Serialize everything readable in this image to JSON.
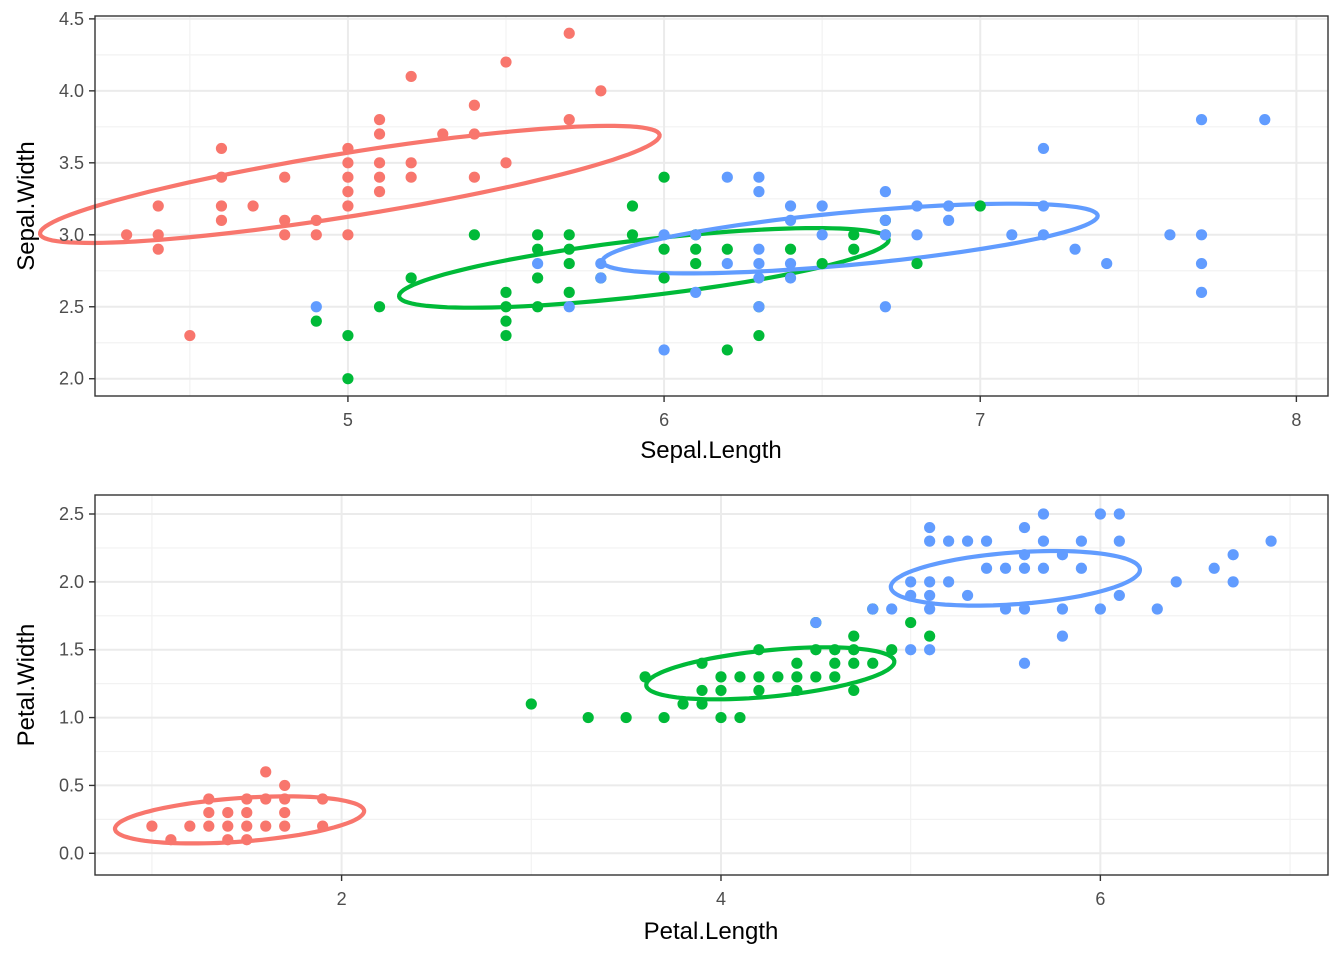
{
  "chart_data": [
    {
      "type": "scatter",
      "xlabel": "Sepal.Length",
      "ylabel": "Sepal.Width",
      "xlim": [
        4.2,
        8.1
      ],
      "ylim": [
        1.88,
        4.52
      ],
      "xticks": [
        5,
        6,
        7,
        8
      ],
      "yticks": [
        2.0,
        2.5,
        3.0,
        3.5,
        4.0,
        4.5
      ],
      "ytick_labels": [
        "2.0",
        "2.5",
        "3.0",
        "3.5",
        "4.0",
        "4.5"
      ],
      "grid": true,
      "legend": "none",
      "series": [
        {
          "color": "#F8766D",
          "points": [
            [
              4.3,
              3.0
            ],
            [
              4.4,
              2.9
            ],
            [
              4.4,
              3.0
            ],
            [
              4.4,
              3.2
            ],
            [
              4.5,
              2.3
            ],
            [
              4.6,
              3.1
            ],
            [
              4.6,
              3.2
            ],
            [
              4.6,
              3.4
            ],
            [
              4.6,
              3.6
            ],
            [
              4.7,
              3.2
            ],
            [
              4.8,
              3.0
            ],
            [
              4.8,
              3.1
            ],
            [
              4.8,
              3.4
            ],
            [
              4.9,
              3.0
            ],
            [
              4.9,
              3.1
            ],
            [
              5.0,
              3.0
            ],
            [
              5.0,
              3.2
            ],
            [
              5.0,
              3.3
            ],
            [
              5.0,
              3.4
            ],
            [
              5.0,
              3.5
            ],
            [
              5.0,
              3.6
            ],
            [
              5.1,
              3.3
            ],
            [
              5.1,
              3.4
            ],
            [
              5.1,
              3.5
            ],
            [
              5.1,
              3.7
            ],
            [
              5.1,
              3.8
            ],
            [
              5.2,
              3.4
            ],
            [
              5.2,
              3.5
            ],
            [
              5.2,
              4.1
            ],
            [
              5.3,
              3.7
            ],
            [
              5.4,
              3.4
            ],
            [
              5.4,
              3.7
            ],
            [
              5.4,
              3.9
            ],
            [
              5.5,
              3.5
            ],
            [
              5.5,
              4.2
            ],
            [
              5.7,
              3.8
            ],
            [
              5.7,
              4.4
            ],
            [
              5.8,
              4.0
            ]
          ],
          "ellipse": {
            "cx": 5.006,
            "cy": 3.35,
            "rx": 1.04,
            "ry": 0.21,
            "angle_deg": 20
          }
        },
        {
          "color": "#00BA38",
          "points": [
            [
              4.9,
              2.4
            ],
            [
              5.0,
              2.0
            ],
            [
              5.0,
              2.3
            ],
            [
              5.1,
              2.5
            ],
            [
              5.2,
              2.7
            ],
            [
              5.4,
              3.0
            ],
            [
              5.5,
              2.3
            ],
            [
              5.5,
              2.4
            ],
            [
              5.5,
              2.5
            ],
            [
              5.5,
              2.6
            ],
            [
              5.6,
              2.5
            ],
            [
              5.6,
              2.7
            ],
            [
              5.6,
              2.9
            ],
            [
              5.6,
              3.0
            ],
            [
              5.7,
              2.6
            ],
            [
              5.7,
              2.8
            ],
            [
              5.7,
              2.9
            ],
            [
              5.7,
              3.0
            ],
            [
              5.8,
              2.7
            ],
            [
              5.9,
              3.0
            ],
            [
              5.9,
              3.2
            ],
            [
              6.0,
              2.7
            ],
            [
              6.0,
              2.9
            ],
            [
              6.0,
              3.4
            ],
            [
              6.1,
              2.8
            ],
            [
              6.1,
              2.9
            ],
            [
              6.1,
              3.0
            ],
            [
              6.2,
              2.2
            ],
            [
              6.2,
              2.9
            ],
            [
              6.3,
              2.3
            ],
            [
              6.3,
              2.5
            ],
            [
              6.4,
              2.9
            ],
            [
              6.5,
              2.8
            ],
            [
              6.6,
              2.9
            ],
            [
              6.6,
              3.0
            ],
            [
              6.7,
              3.0
            ],
            [
              6.7,
              3.1
            ],
            [
              6.8,
              2.8
            ],
            [
              7.0,
              3.2
            ]
          ],
          "ellipse": {
            "cx": 5.936,
            "cy": 2.77,
            "rx": 0.8,
            "ry": 0.19,
            "angle_deg": 15
          }
        },
        {
          "color": "#619CFF",
          "points": [
            [
              4.9,
              2.5
            ],
            [
              5.6,
              2.8
            ],
            [
              5.7,
              2.5
            ],
            [
              5.8,
              2.7
            ],
            [
              5.8,
              2.8
            ],
            [
              6.0,
              2.2
            ],
            [
              6.0,
              3.0
            ],
            [
              6.1,
              2.6
            ],
            [
              6.1,
              3.0
            ],
            [
              6.2,
              2.8
            ],
            [
              6.2,
              3.4
            ],
            [
              6.3,
              2.5
            ],
            [
              6.3,
              2.7
            ],
            [
              6.3,
              2.8
            ],
            [
              6.3,
              2.9
            ],
            [
              6.3,
              3.3
            ],
            [
              6.3,
              3.4
            ],
            [
              6.4,
              2.7
            ],
            [
              6.4,
              2.8
            ],
            [
              6.4,
              3.1
            ],
            [
              6.4,
              3.2
            ],
            [
              6.5,
              3.0
            ],
            [
              6.5,
              3.2
            ],
            [
              6.7,
              2.5
            ],
            [
              6.7,
              3.0
            ],
            [
              6.7,
              3.1
            ],
            [
              6.7,
              3.3
            ],
            [
              6.8,
              3.0
            ],
            [
              6.8,
              3.2
            ],
            [
              6.9,
              3.1
            ],
            [
              6.9,
              3.2
            ],
            [
              7.1,
              3.0
            ],
            [
              7.2,
              3.0
            ],
            [
              7.2,
              3.2
            ],
            [
              7.2,
              3.6
            ],
            [
              7.3,
              2.9
            ],
            [
              7.4,
              2.8
            ],
            [
              7.6,
              3.0
            ],
            [
              7.7,
              2.6
            ],
            [
              7.7,
              2.8
            ],
            [
              7.7,
              3.0
            ],
            [
              7.7,
              3.8
            ],
            [
              7.9,
              3.8
            ]
          ],
          "ellipse": {
            "cx": 6.588,
            "cy": 2.974,
            "rx": 0.8,
            "ry": 0.18,
            "angle_deg": 12
          }
        }
      ]
    },
    {
      "type": "scatter",
      "xlabel": "Petal.Length",
      "ylabel": "Petal.Width",
      "xlim": [
        0.7,
        7.2
      ],
      "ylim": [
        -0.16,
        2.64
      ],
      "xticks": [
        2,
        4,
        6
      ],
      "yticks": [
        0.0,
        0.5,
        1.0,
        1.5,
        2.0,
        2.5
      ],
      "ytick_labels": [
        "0.0",
        "0.5",
        "1.0",
        "1.5",
        "2.0",
        "2.5"
      ],
      "grid": true,
      "legend": "none",
      "series": [
        {
          "color": "#F8766D",
          "points": [
            [
              1.0,
              0.2
            ],
            [
              1.1,
              0.1
            ],
            [
              1.2,
              0.2
            ],
            [
              1.3,
              0.2
            ],
            [
              1.3,
              0.3
            ],
            [
              1.3,
              0.4
            ],
            [
              1.4,
              0.1
            ],
            [
              1.4,
              0.2
            ],
            [
              1.4,
              0.3
            ],
            [
              1.5,
              0.1
            ],
            [
              1.5,
              0.2
            ],
            [
              1.5,
              0.3
            ],
            [
              1.5,
              0.4
            ],
            [
              1.6,
              0.2
            ],
            [
              1.6,
              0.4
            ],
            [
              1.6,
              0.6
            ],
            [
              1.7,
              0.2
            ],
            [
              1.7,
              0.3
            ],
            [
              1.7,
              0.4
            ],
            [
              1.7,
              0.5
            ],
            [
              1.9,
              0.2
            ],
            [
              1.9,
              0.4
            ]
          ],
          "ellipse": {
            "cx": 1.462,
            "cy": 0.246,
            "rx": 0.66,
            "ry": 0.16,
            "angle_deg": 6
          }
        },
        {
          "color": "#00BA38",
          "points": [
            [
              3.0,
              1.1
            ],
            [
              3.3,
              1.0
            ],
            [
              3.5,
              1.0
            ],
            [
              3.6,
              1.3
            ],
            [
              3.7,
              1.0
            ],
            [
              3.8,
              1.1
            ],
            [
              3.9,
              1.1
            ],
            [
              3.9,
              1.2
            ],
            [
              3.9,
              1.4
            ],
            [
              4.0,
              1.0
            ],
            [
              4.0,
              1.2
            ],
            [
              4.0,
              1.3
            ],
            [
              4.1,
              1.0
            ],
            [
              4.1,
              1.3
            ],
            [
              4.2,
              1.2
            ],
            [
              4.2,
              1.3
            ],
            [
              4.2,
              1.5
            ],
            [
              4.3,
              1.3
            ],
            [
              4.4,
              1.2
            ],
            [
              4.4,
              1.3
            ],
            [
              4.4,
              1.4
            ],
            [
              4.5,
              1.3
            ],
            [
              4.5,
              1.5
            ],
            [
              4.5,
              1.7
            ],
            [
              4.6,
              1.3
            ],
            [
              4.6,
              1.4
            ],
            [
              4.6,
              1.5
            ],
            [
              4.7,
              1.2
            ],
            [
              4.7,
              1.4
            ],
            [
              4.7,
              1.5
            ],
            [
              4.7,
              1.6
            ],
            [
              4.8,
              1.4
            ],
            [
              4.8,
              1.8
            ],
            [
              4.9,
              1.5
            ],
            [
              5.0,
              1.7
            ],
            [
              5.1,
              1.6
            ]
          ],
          "ellipse": {
            "cx": 4.26,
            "cy": 1.326,
            "rx": 0.66,
            "ry": 0.17,
            "angle_deg": 8
          }
        },
        {
          "color": "#619CFF",
          "points": [
            [
              4.5,
              1.7
            ],
            [
              4.8,
              1.8
            ],
            [
              4.9,
              1.8
            ],
            [
              5.0,
              1.5
            ],
            [
              5.0,
              1.9
            ],
            [
              5.0,
              2.0
            ],
            [
              5.1,
              1.5
            ],
            [
              5.1,
              1.8
            ],
            [
              5.1,
              1.9
            ],
            [
              5.1,
              2.0
            ],
            [
              5.1,
              2.3
            ],
            [
              5.1,
              2.4
            ],
            [
              5.2,
              2.0
            ],
            [
              5.2,
              2.3
            ],
            [
              5.3,
              1.9
            ],
            [
              5.3,
              2.3
            ],
            [
              5.4,
              2.1
            ],
            [
              5.4,
              2.3
            ],
            [
              5.5,
              1.8
            ],
            [
              5.5,
              2.1
            ],
            [
              5.6,
              1.4
            ],
            [
              5.6,
              1.8
            ],
            [
              5.6,
              2.1
            ],
            [
              5.6,
              2.2
            ],
            [
              5.6,
              2.4
            ],
            [
              5.7,
              2.1
            ],
            [
              5.7,
              2.3
            ],
            [
              5.7,
              2.5
            ],
            [
              5.8,
              1.6
            ],
            [
              5.8,
              1.8
            ],
            [
              5.8,
              2.2
            ],
            [
              5.9,
              2.1
            ],
            [
              5.9,
              2.3
            ],
            [
              6.0,
              1.8
            ],
            [
              6.0,
              2.5
            ],
            [
              6.1,
              1.9
            ],
            [
              6.1,
              2.3
            ],
            [
              6.1,
              2.5
            ],
            [
              6.3,
              1.8
            ],
            [
              6.4,
              2.0
            ],
            [
              6.6,
              2.1
            ],
            [
              6.7,
              2.0
            ],
            [
              6.7,
              2.2
            ],
            [
              6.9,
              2.3
            ]
          ],
          "ellipse": {
            "cx": 5.552,
            "cy": 2.026,
            "rx": 0.66,
            "ry": 0.19,
            "angle_deg": 6
          }
        }
      ]
    }
  ]
}
